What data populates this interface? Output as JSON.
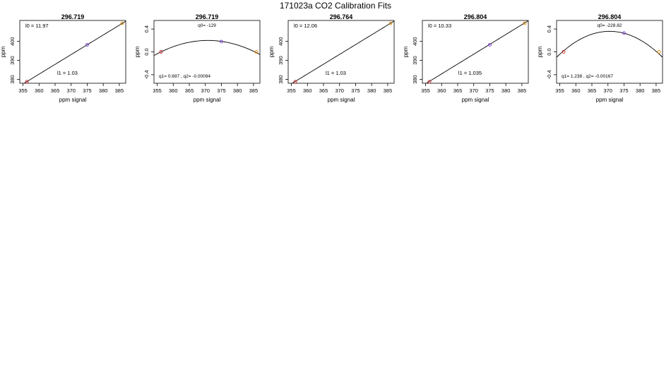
{
  "page_title": "171023a   CO2 Calibration Fits",
  "colors": {
    "axis": "#000000",
    "curve": "#000000",
    "pt_low": "#d62728",
    "pt_mid": "#7a3cd6",
    "pt_high": "#e08a00"
  },
  "chart_data": [
    {
      "type": "line",
      "kind": "linear",
      "title": "296.719",
      "xlabel": "ppm signal",
      "ylabel": "ppm",
      "xlim": [
        354,
        387
      ],
      "ylim": [
        378,
        411
      ],
      "xticks": [
        355,
        360,
        365,
        370,
        375,
        380,
        385
      ],
      "yticks": [
        380,
        390,
        400
      ],
      "fit": {
        "a": 11.97,
        "b": 1.03
      },
      "points": [
        {
          "x": 356.2,
          "y": 378.8
        },
        {
          "x": 375.0,
          "y": 398.2
        },
        {
          "x": 385.9,
          "y": 409.5
        }
      ],
      "annotations": [
        {
          "text": "l0 =  11.97",
          "pos": "top-left"
        },
        {
          "text": "l1 =  1.03",
          "pos": "lower-center"
        }
      ]
    },
    {
      "type": "line",
      "kind": "quadratic",
      "title": "296.719",
      "xlabel": "ppm signal",
      "ylabel": "ppm",
      "xlim": [
        354,
        387
      ],
      "ylim": [
        -0.55,
        0.55
      ],
      "xticks": [
        355,
        360,
        365,
        370,
        375,
        380,
        385
      ],
      "yticks": [
        -0.4,
        0.0,
        0.4
      ],
      "fit": {
        "vertex_x": 370.8,
        "peak": 0.2,
        "a": -0.00094
      },
      "points": [
        {
          "x": 356.2,
          "y": 0.0
        },
        {
          "x": 375.0,
          "y": 0.18
        },
        {
          "x": 385.9,
          "y": 0.0
        }
      ],
      "annotations": [
        {
          "text": "q0= -129",
          "pos": "top-center"
        },
        {
          "text": "q1= 0.697 , q2= -0.00094",
          "pos": "bottom-left"
        }
      ]
    },
    {
      "type": "line",
      "kind": "linear",
      "title": "296.764",
      "xlabel": "ppm signal",
      "ylabel": "ppm",
      "xlim": [
        354,
        387
      ],
      "ylim": [
        378,
        411
      ],
      "xticks": [
        355,
        360,
        365,
        370,
        375,
        380,
        385
      ],
      "yticks": [
        380,
        390,
        400
      ],
      "fit": {
        "a": 12.06,
        "b": 1.03
      },
      "points": [
        {
          "x": 356.2,
          "y": 378.8
        },
        {
          "x": 385.9,
          "y": 409.5
        }
      ],
      "annotations": [
        {
          "text": "l0 =  12.06",
          "pos": "top-left"
        },
        {
          "text": "l1 =  1.03",
          "pos": "lower-center"
        }
      ]
    },
    {
      "type": "line",
      "kind": "linear",
      "title": "296.804",
      "xlabel": "ppm signal",
      "ylabel": "ppm",
      "xlim": [
        354,
        387
      ],
      "ylim": [
        378,
        411
      ],
      "xticks": [
        355,
        360,
        365,
        370,
        375,
        380,
        385
      ],
      "yticks": [
        380,
        390,
        400
      ],
      "fit": {
        "a": 10.33,
        "b": 1.035
      },
      "points": [
        {
          "x": 356.2,
          "y": 378.8
        },
        {
          "x": 375.0,
          "y": 398.2
        },
        {
          "x": 385.9,
          "y": 409.5
        }
      ],
      "annotations": [
        {
          "text": "l0 =  10.33",
          "pos": "top-left"
        },
        {
          "text": "l1 =  1.035",
          "pos": "lower-center"
        }
      ]
    },
    {
      "type": "line",
      "kind": "quadratic",
      "title": "296.804",
      "xlabel": "ppm signal",
      "ylabel": "ppm",
      "xlim": [
        354,
        387
      ],
      "ylim": [
        -0.55,
        0.55
      ],
      "xticks": [
        355,
        360,
        365,
        370,
        375,
        380,
        385
      ],
      "yticks": [
        -0.4,
        0.0,
        0.4
      ],
      "fit": {
        "vertex_x": 370.5,
        "peak": 0.36,
        "a": -0.00167
      },
      "points": [
        {
          "x": 356.2,
          "y": 0.0
        },
        {
          "x": 375.0,
          "y": 0.33
        },
        {
          "x": 385.9,
          "y": 0.0
        }
      ],
      "annotations": [
        {
          "text": "q0= -228.82",
          "pos": "top-center"
        },
        {
          "text": "q1= 1.238 , q2= -0.00167",
          "pos": "bottom-left"
        }
      ]
    }
  ]
}
